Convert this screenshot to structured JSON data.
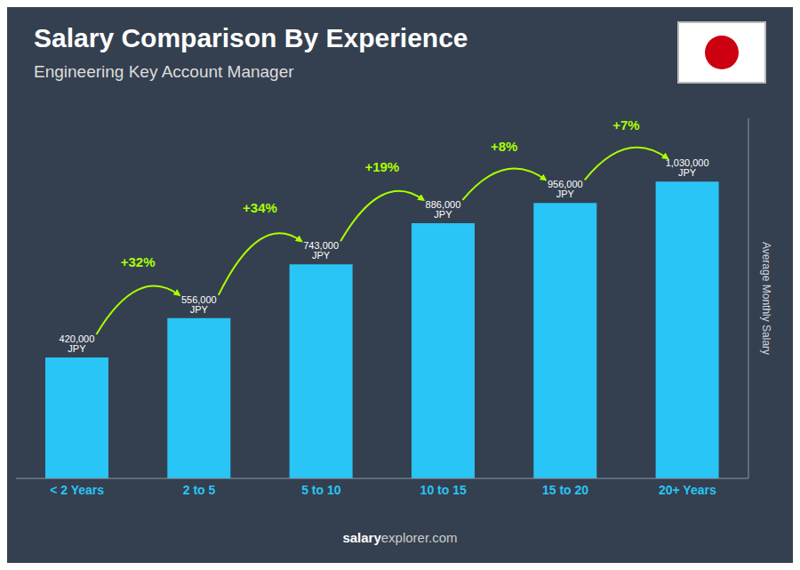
{
  "chart_data": {
    "type": "bar",
    "title": "Salary Comparison By Experience",
    "subtitle": "Engineering Key Account Manager",
    "categories": [
      "< 2 Years",
      "2 to 5",
      "5 to 10",
      "10 to 15",
      "15 to 20",
      "20+ Years"
    ],
    "values": [
      420000,
      556000,
      743000,
      886000,
      956000,
      1030000
    ],
    "value_labels": [
      "420,000 JPY",
      "556,000 JPY",
      "743,000 JPY",
      "886,000 JPY",
      "956,000 JPY",
      "1,030,000 JPY"
    ],
    "data_labels": true,
    "annotations": [
      "+32%",
      "+34%",
      "+19%",
      "+8%",
      "+7%"
    ],
    "ylabel": "Average Monthly Salary",
    "ylim": [
      0,
      1250000
    ],
    "color": "#29c5f6",
    "tick_labels": "x",
    "grid": false,
    "footer": [
      "salary",
      "explorer.com"
    ]
  }
}
